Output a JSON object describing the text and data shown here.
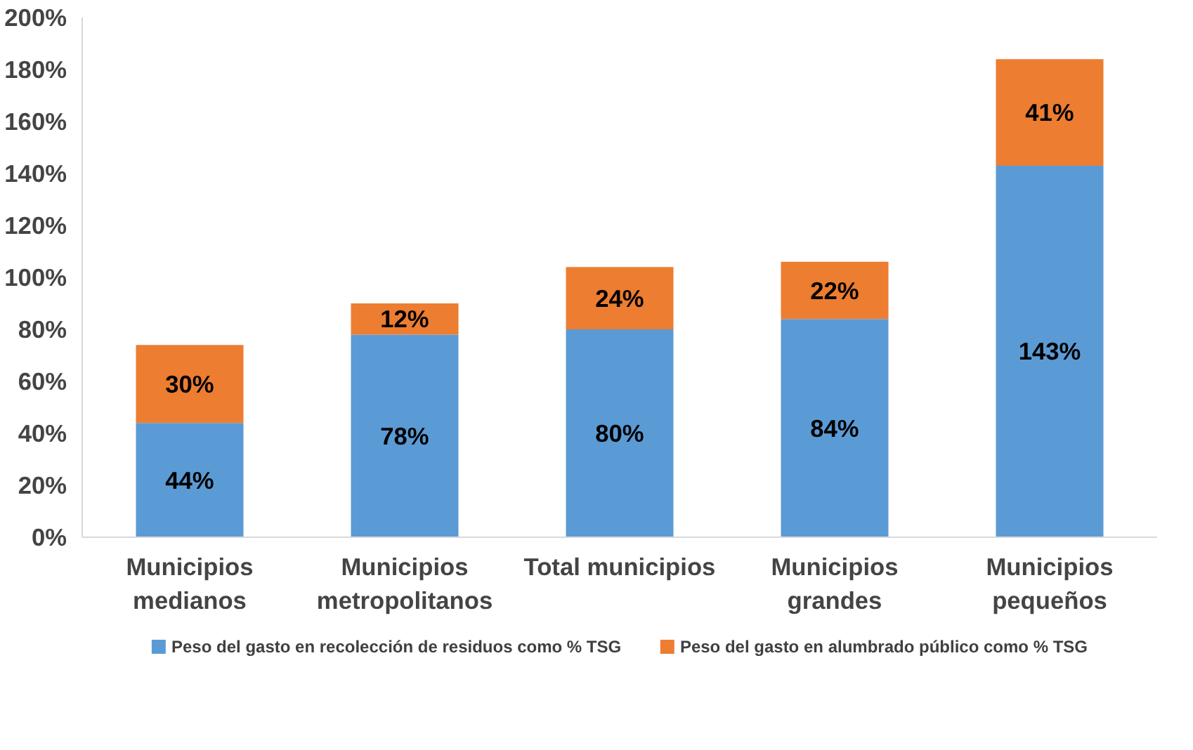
{
  "chart_data": {
    "type": "bar",
    "stacked": true,
    "categories": [
      "Municipios medianos",
      "Municipios metropolitanos",
      "Total municipios",
      "Municipios grandes",
      "Municipios pequeños"
    ],
    "series": [
      {
        "name": "Peso del gasto en recolección de residuos como % TSG",
        "color": "#5b9bd5",
        "values": [
          44,
          78,
          80,
          84,
          143
        ],
        "value_labels": [
          "44%",
          "78%",
          "80%",
          "84%",
          "143%"
        ]
      },
      {
        "name": "Peso del gasto en alumbrado público como % TSG",
        "color": "#ed7d31",
        "values": [
          30,
          12,
          24,
          22,
          41
        ],
        "value_labels": [
          "30%",
          "12%",
          "24%",
          "22%",
          "41%"
        ]
      }
    ],
    "ylim": [
      0,
      200
    ],
    "yticks": [
      {
        "value": 0,
        "label": "0%"
      },
      {
        "value": 20,
        "label": "20%"
      },
      {
        "value": 40,
        "label": "40%"
      },
      {
        "value": 60,
        "label": "60%"
      },
      {
        "value": 80,
        "label": "80%"
      },
      {
        "value": 100,
        "label": "100%"
      },
      {
        "value": 120,
        "label": "120%"
      },
      {
        "value": 140,
        "label": "140%"
      },
      {
        "value": 160,
        "label": "160%"
      },
      {
        "value": 180,
        "label": "180%"
      },
      {
        "value": 200,
        "label": "200%"
      }
    ],
    "grid": false,
    "legend": "bottom"
  }
}
